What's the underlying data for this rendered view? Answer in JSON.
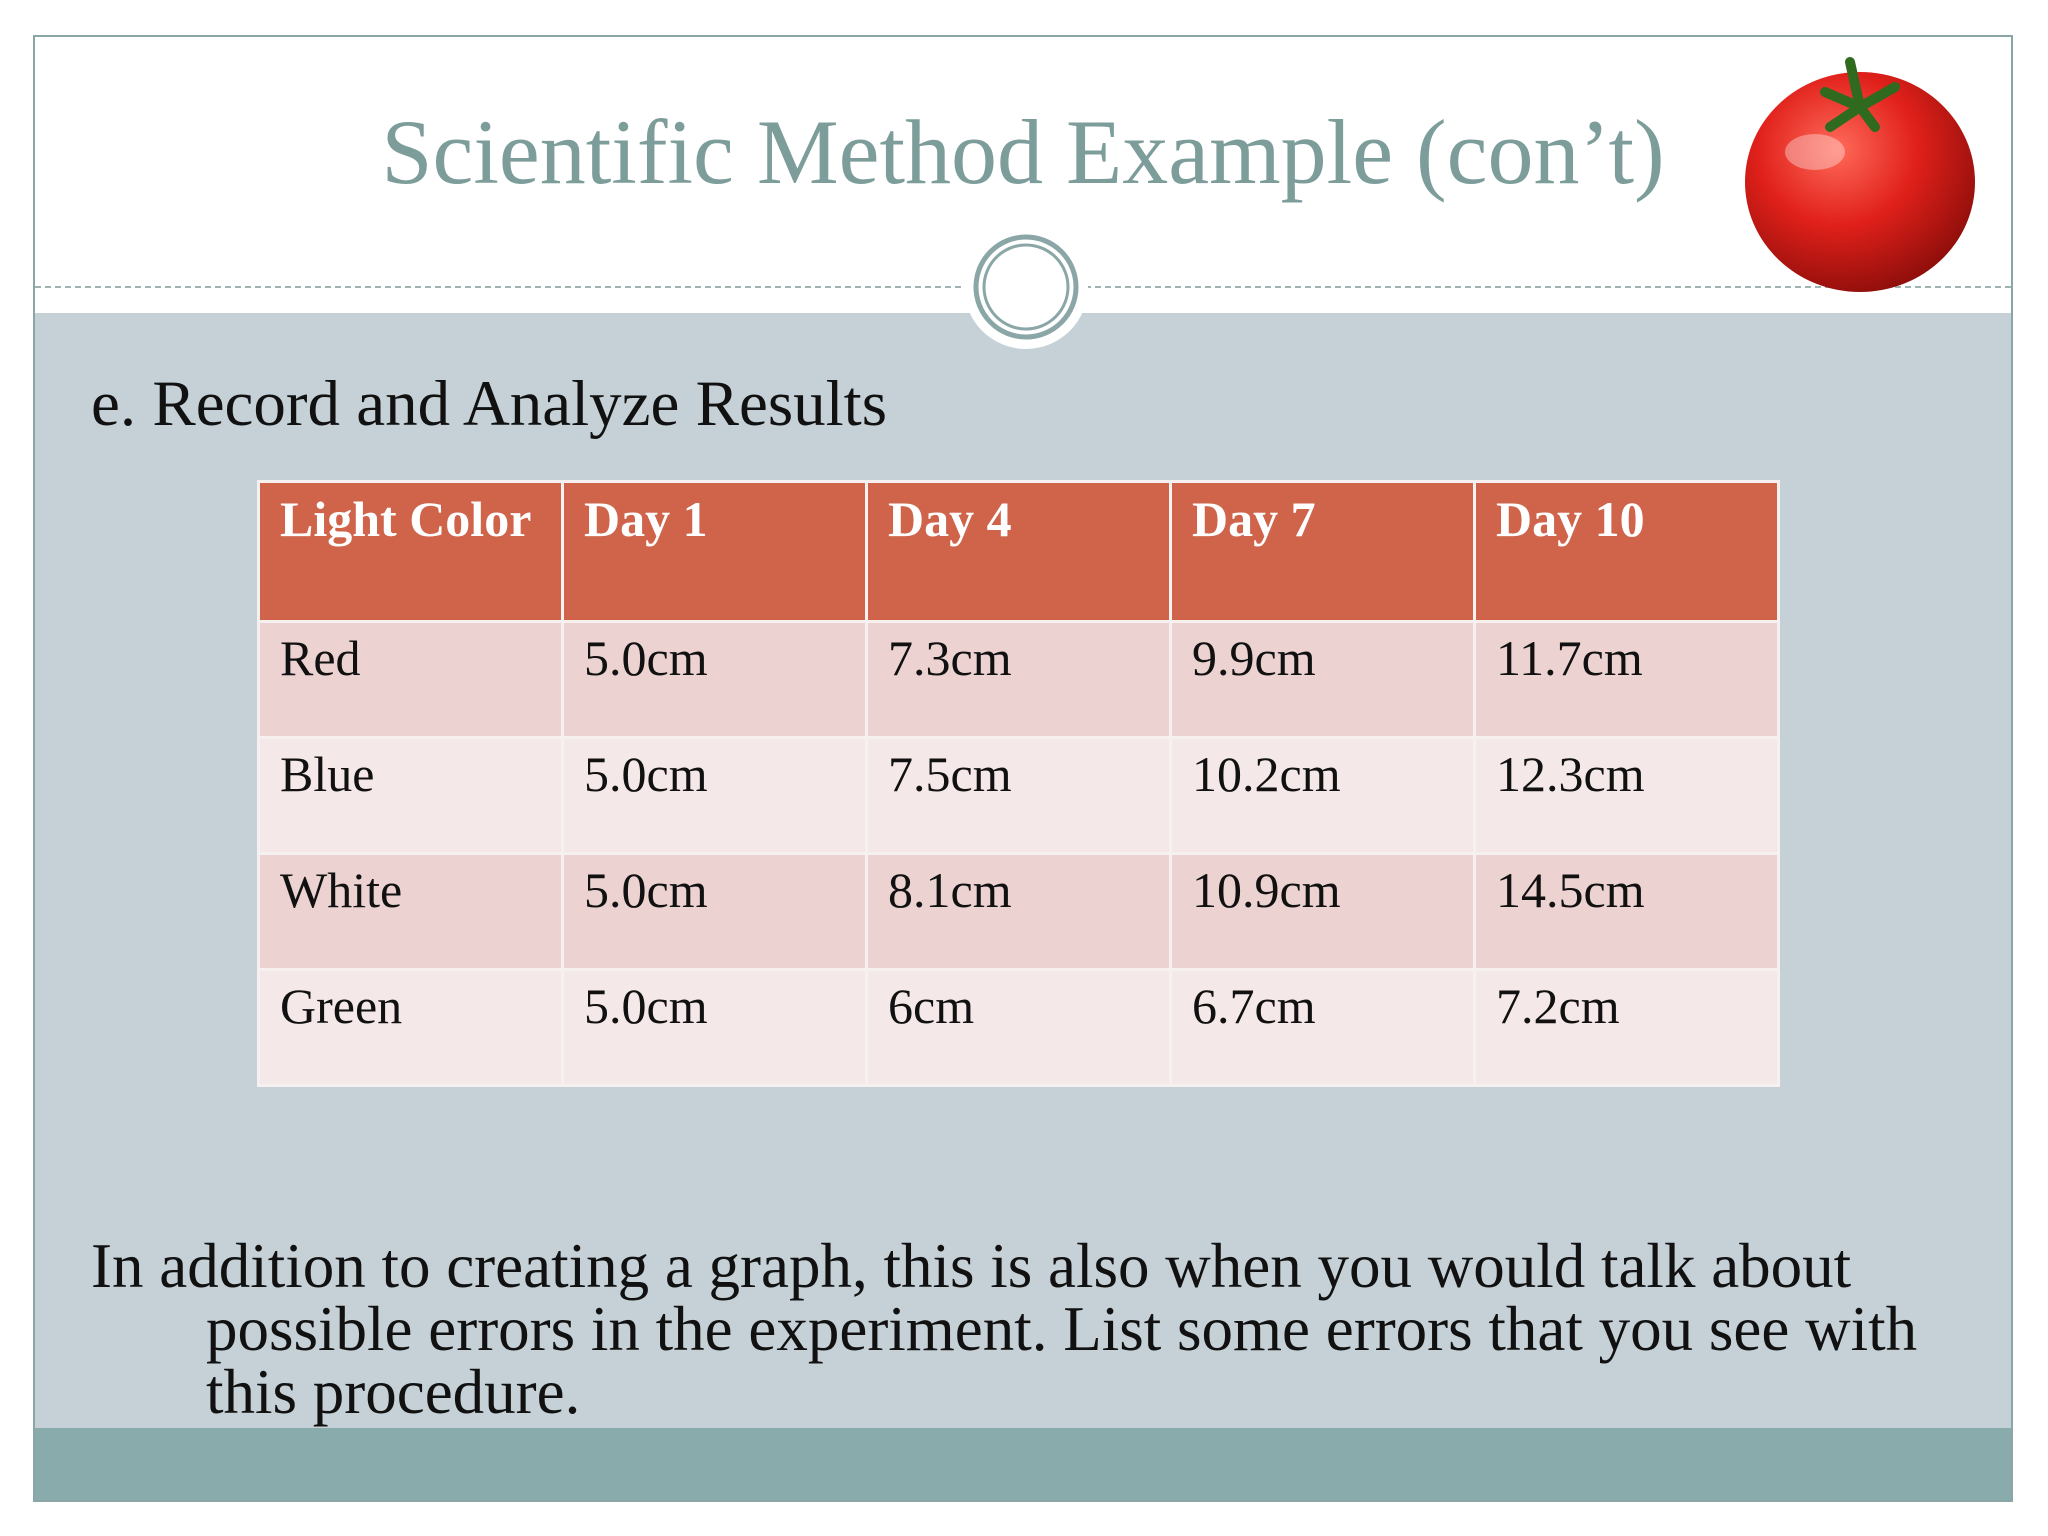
{
  "header": {
    "title": "Scientific Method Example (con’t)"
  },
  "section": {
    "heading": "e.  Record and Analyze Results"
  },
  "table": {
    "columns": [
      "Light Color",
      "Day 1",
      "Day 4",
      "Day 7",
      "Day 10"
    ],
    "rows": [
      [
        "Red",
        "5.0cm",
        "7.3cm",
        "9.9cm",
        "11.7cm"
      ],
      [
        "Blue",
        "5.0cm",
        "7.5cm",
        "10.2cm",
        "12.3cm"
      ],
      [
        "White",
        "5.0cm",
        "8.1cm",
        "10.9cm",
        "14.5cm"
      ],
      [
        "Green",
        "5.0cm",
        "6cm",
        "6.7cm",
        "7.2cm"
      ]
    ]
  },
  "body": {
    "text": "In addition to creating a graph, this is also when you would talk about possible errors in the experiment.  List some errors that you see with this procedure."
  }
}
